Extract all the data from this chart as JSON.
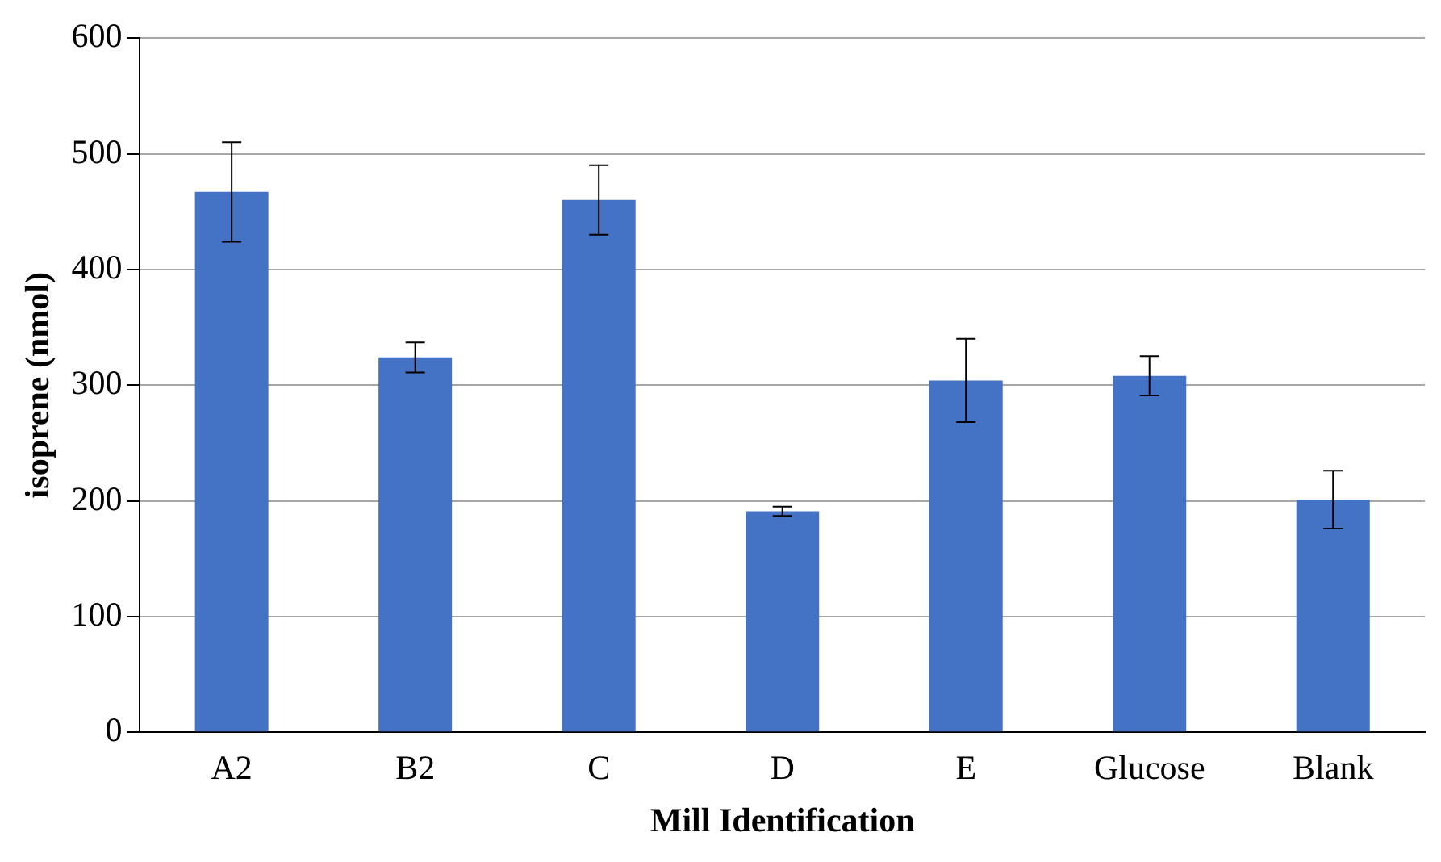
{
  "chart_data": {
    "type": "bar",
    "xlabel": "Mill Identification",
    "ylabel": "isoprene (nmol)",
    "categories": [
      "A2",
      "B2",
      "C",
      "D",
      "E",
      "Glucose",
      "Blank"
    ],
    "values": [
      467,
      324,
      460,
      191,
      304,
      308,
      201
    ],
    "errors": [
      43,
      13,
      30,
      4,
      36,
      17,
      25
    ],
    "color": "#4472c4",
    "ylim": [
      0,
      600
    ],
    "yticks": [
      0,
      100,
      200,
      300,
      400,
      500,
      600
    ],
    "grid": "y",
    "legend": false
  }
}
